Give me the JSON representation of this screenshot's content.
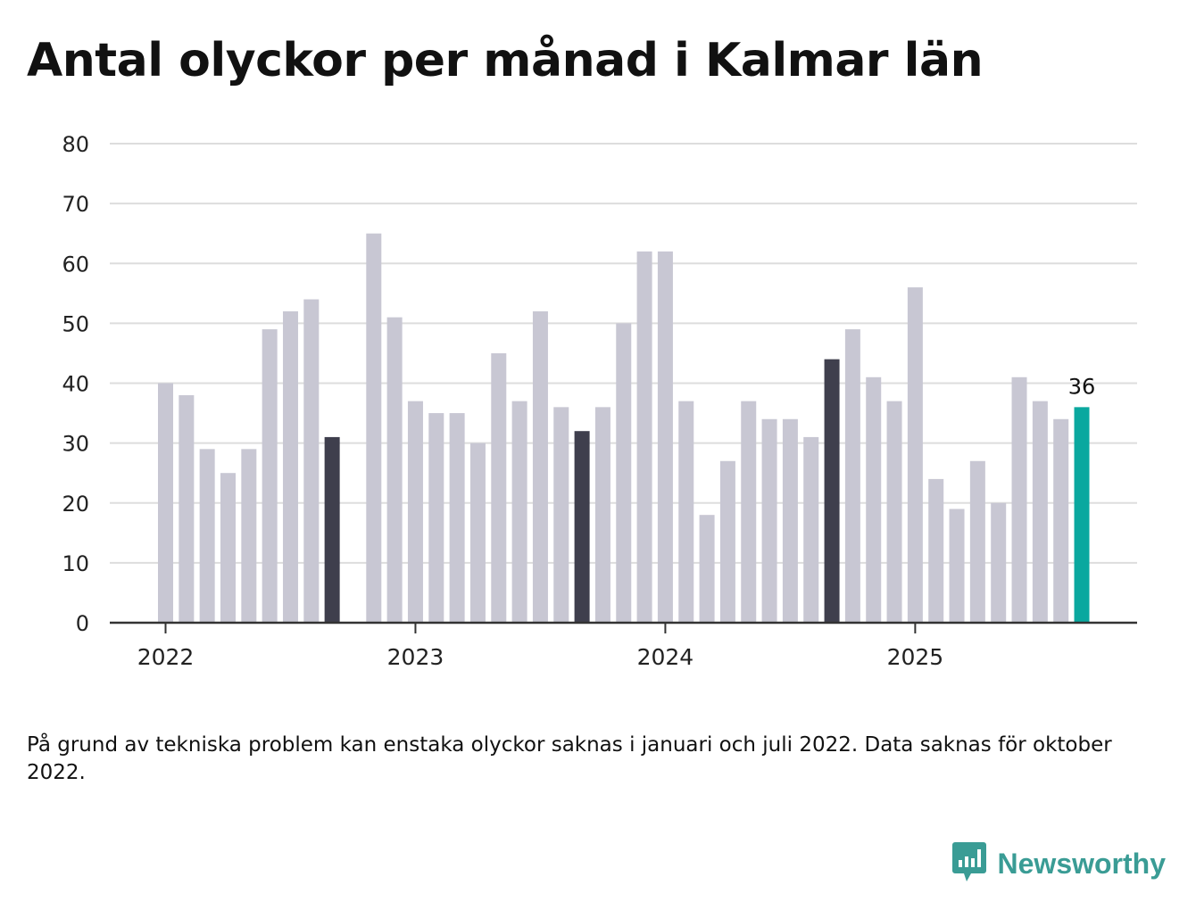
{
  "title": "Antal olyckor per månad i Kalmar län",
  "footnote": "På grund av tekniska problem kan enstaka olyckor saknas i januari och juli 2022. Data saknas för oktober 2022.",
  "brand": {
    "name": "Newsworthy",
    "icon": "newsworthy-logo-icon",
    "color": "#3a9c95"
  },
  "colors": {
    "normal": "#c8c7d3",
    "highlight": "#3f3f4d",
    "latest": "#0aa89f",
    "grid": "#dddddd",
    "axis": "#333333"
  },
  "chart_data": {
    "type": "bar",
    "title": "Antal olyckor per månad i Kalmar län",
    "xlabel": "",
    "ylabel": "",
    "ylim": [
      0,
      80
    ],
    "yticks": [
      0,
      10,
      20,
      30,
      40,
      50,
      60,
      70,
      80
    ],
    "xtick_labels": [
      "2022",
      "2023",
      "2024",
      "2025"
    ],
    "grid": true,
    "categories": [
      "2022-01",
      "2022-02",
      "2022-03",
      "2022-04",
      "2022-05",
      "2022-06",
      "2022-07",
      "2022-08",
      "2022-09",
      "2022-10",
      "2022-11",
      "2022-12",
      "2023-01",
      "2023-02",
      "2023-03",
      "2023-04",
      "2023-05",
      "2023-06",
      "2023-07",
      "2023-08",
      "2023-09",
      "2023-10",
      "2023-11",
      "2023-12",
      "2024-01",
      "2024-02",
      "2024-03",
      "2024-04",
      "2024-05",
      "2024-06",
      "2024-07",
      "2024-08",
      "2024-09",
      "2024-10",
      "2024-11",
      "2024-12",
      "2025-01",
      "2025-02",
      "2025-03",
      "2025-04",
      "2025-05",
      "2025-06",
      "2025-07",
      "2025-08",
      "2025-09"
    ],
    "values": [
      40,
      38,
      29,
      25,
      29,
      49,
      52,
      54,
      31,
      null,
      65,
      51,
      37,
      35,
      35,
      30,
      45,
      37,
      52,
      36,
      32,
      36,
      50,
      62,
      62,
      37,
      18,
      27,
      37,
      34,
      34,
      31,
      44,
      49,
      41,
      37,
      56,
      24,
      19,
      27,
      20,
      41,
      37,
      34,
      36
    ],
    "highlighted": [
      "2022-09",
      "2023-09",
      "2024-09"
    ],
    "latest": "2025-09",
    "latest_label": "36"
  }
}
